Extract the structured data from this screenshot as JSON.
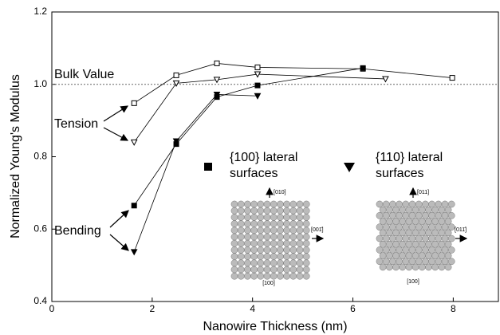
{
  "chart_data": {
    "type": "line",
    "xlabel": "Nanowire Thickness (nm)",
    "ylabel": "Normalized Young's Modulus",
    "xlim": [
      0,
      8.9
    ],
    "ylim": [
      0.4,
      1.2
    ],
    "xticks": [
      0,
      2,
      4,
      6,
      8
    ],
    "yticks": [
      0.4,
      0.6,
      0.8,
      {
        "value": 1.0,
        "label": "1.0"
      },
      1.2
    ],
    "reference_line": {
      "value": 1.0,
      "label": "Bulk Value"
    },
    "series": [
      {
        "color": "#000000",
        "marker": "square",
        "filled": false,
        "x": [
          1.64,
          2.48,
          3.29,
          4.1,
          6.2,
          7.98
        ],
        "values": [
          0.948,
          1.025,
          1.058,
          1.047,
          1.043,
          1.018
        ]
      },
      {
        "color": "#000000",
        "marker": "triangle",
        "filled": false,
        "x": [
          1.64,
          2.48,
          3.29,
          4.1,
          6.65
        ],
        "values": [
          0.84,
          1.003,
          1.013,
          1.028,
          1.015
        ]
      },
      {
        "color": "#000000",
        "marker": "square",
        "filled": true,
        "x": [
          1.64,
          2.48,
          3.29,
          4.1,
          6.2
        ],
        "values": [
          0.665,
          0.835,
          0.965,
          0.997,
          1.045
        ]
      },
      {
        "color": "#000000",
        "marker": "triangle",
        "filled": true,
        "x": [
          1.64,
          2.48,
          3.29,
          4.1
        ],
        "values": [
          0.537,
          0.843,
          0.972,
          0.968
        ]
      }
    ],
    "annotations": {
      "tension": "Tension",
      "bending": "Bending",
      "legend_100": [
        "{100} lateral",
        "surfaces"
      ],
      "legend_110": [
        "{110} lateral",
        "surfaces"
      ],
      "inset_100": [
        "[010]",
        "[001̄]",
        "[100]"
      ],
      "inset_110": [
        "[011]",
        "[011̄]",
        "[100]"
      ]
    }
  }
}
